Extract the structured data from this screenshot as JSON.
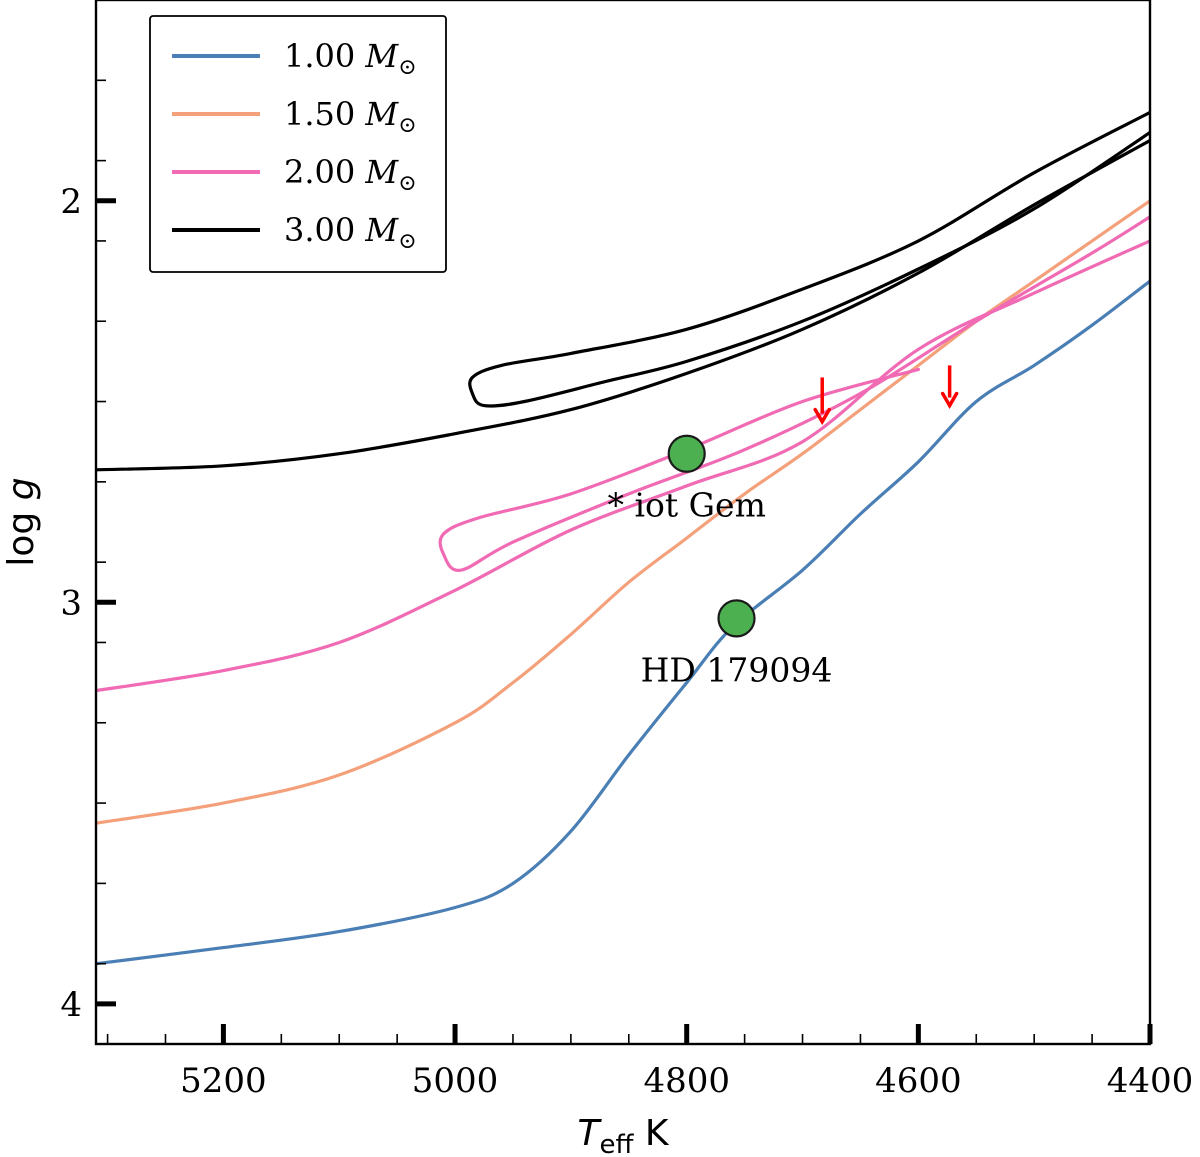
{
  "chart_data": {
    "type": "line",
    "title": "",
    "xlabel_main": "T",
    "xlabel_sub": "eff",
    "xlabel_unit": "K",
    "ylabel_main": "log",
    "ylabel_var": "g",
    "xlim": [
      5310,
      4400
    ],
    "ylim": [
      4.1,
      1.5
    ],
    "xticks": [
      5200,
      5000,
      4800,
      4600,
      4400
    ],
    "xtick_labels": [
      "5200",
      "5000",
      "4800",
      "4600",
      "4400"
    ],
    "yticks": [
      2,
      3,
      4
    ],
    "ytick_labels": [
      "2",
      "3",
      "4"
    ],
    "legend": {
      "position": "top-left",
      "entries": [
        {
          "label": "1.00",
          "unit": "M",
          "sub": "⊙",
          "color": "#4a7fb5"
        },
        {
          "label": "1.50",
          "unit": "M",
          "sub": "⊙",
          "color": "#f4a07a"
        },
        {
          "label": "2.00",
          "unit": "M",
          "sub": "⊙",
          "color": "#f06ab4"
        },
        {
          "label": "3.00",
          "unit": "M",
          "sub": "⊙",
          "color": "#000000"
        }
      ]
    },
    "series": [
      {
        "name": "1.00 M⊙",
        "color": "#4a7fb5",
        "x": [
          5310,
          5200,
          5100,
          5000,
          4950,
          4900,
          4850,
          4800,
          4760,
          4700,
          4650,
          4600,
          4550,
          4500,
          4450,
          4400
        ],
        "y": [
          3.9,
          3.86,
          3.82,
          3.76,
          3.7,
          3.57,
          3.38,
          3.2,
          3.06,
          2.92,
          2.78,
          2.65,
          2.5,
          2.41,
          2.31,
          2.2
        ]
      },
      {
        "name": "1.50 M⊙",
        "color": "#f4a07a",
        "x": [
          5310,
          5200,
          5100,
          5000,
          4950,
          4900,
          4850,
          4800,
          4750,
          4700,
          4650,
          4600,
          4550,
          4500,
          4450,
          4400
        ],
        "y": [
          3.55,
          3.5,
          3.43,
          3.3,
          3.2,
          3.08,
          2.95,
          2.84,
          2.73,
          2.63,
          2.52,
          2.41,
          2.3,
          2.2,
          2.1,
          2.0
        ]
      },
      {
        "name": "2.00 M⊙",
        "color": "#f06ab4",
        "x": [
          5310,
          5200,
          5100,
          5000,
          4900,
          4800,
          4700,
          4600,
          4500,
          4400
        ],
        "y": [
          3.22,
          3.17,
          3.1,
          2.97,
          2.82,
          2.71,
          2.6,
          2.37,
          2.23,
          2.1
        ]
      },
      {
        "name": "2.00 M⊙ loop",
        "color": "#f06ab4",
        "x": [
          4600,
          4700,
          4800,
          4900,
          4980,
          5010,
          5010,
          4995,
          4950,
          4850,
          4750,
          4650,
          4550,
          4450,
          4400
        ],
        "y": [
          2.42,
          2.5,
          2.62,
          2.73,
          2.79,
          2.83,
          2.88,
          2.92,
          2.85,
          2.73,
          2.62,
          2.48,
          2.3,
          2.13,
          2.04
        ]
      },
      {
        "name": "3.00 M⊙",
        "color": "#000000",
        "x": [
          5310,
          5200,
          5100,
          5000,
          4900,
          4800,
          4700,
          4600,
          4500,
          4400
        ],
        "y": [
          2.67,
          2.66,
          2.63,
          2.58,
          2.52,
          2.43,
          2.32,
          2.18,
          2.01,
          1.85
        ]
      },
      {
        "name": "3.00 M⊙ loop",
        "color": "#000000",
        "x": [
          4400,
          4500,
          4600,
          4700,
          4800,
          4900,
          4960,
          4985,
          4985,
          4975,
          4940,
          4870,
          4800,
          4700,
          4600,
          4500,
          4400
        ],
        "y": [
          1.78,
          1.93,
          2.1,
          2.22,
          2.32,
          2.38,
          2.41,
          2.44,
          2.48,
          2.51,
          2.5,
          2.45,
          2.4,
          2.3,
          2.17,
          2.02,
          1.83
        ]
      }
    ],
    "points": [
      {
        "name": "iot Gem",
        "label": "* iot Gem",
        "x": 4800,
        "y": 2.63,
        "color": "#4caf50"
      },
      {
        "name": "HD 179094",
        "label": "HD 179094",
        "x": 4757,
        "y": 3.04,
        "color": "#4caf50"
      }
    ],
    "arrows": [
      {
        "x": 4683,
        "y_from": 2.44,
        "y_to": 2.55,
        "color": "#ff0000"
      },
      {
        "x": 4573,
        "y_from": 2.41,
        "y_to": 2.51,
        "color": "#ff0000"
      }
    ]
  }
}
